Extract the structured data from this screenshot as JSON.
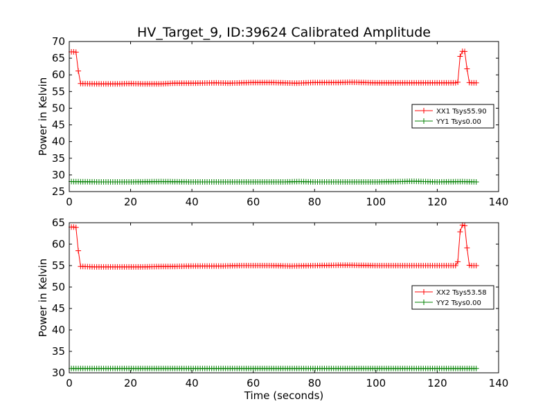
{
  "figure": {
    "title": "HV_Target_9, ID:39624 Calibrated Amplitude",
    "xlabel": "Time (seconds)"
  },
  "colors": {
    "red": "#ff0000",
    "green": "#008000",
    "axes": "#000000"
  },
  "chart_data": [
    {
      "type": "line",
      "ylabel": "Power in Kelvin",
      "xlim": [
        0,
        140
      ],
      "ylim": [
        25,
        70
      ],
      "xticks": [
        0,
        20,
        40,
        60,
        80,
        100,
        120,
        140
      ],
      "yticks": [
        25,
        30,
        35,
        40,
        45,
        50,
        55,
        60,
        65,
        70
      ],
      "grid": false,
      "legend_position": "right",
      "series": [
        {
          "name": "XX1 Tsys55.90",
          "color": "#ff0000",
          "marker": "+",
          "points": [
            [
              0.7,
              66.9
            ],
            [
              1.5,
              66.9
            ],
            [
              2.3,
              66.8
            ],
            [
              2.9,
              61.5
            ],
            [
              3.5,
              57.4
            ],
            [
              4,
              57.4
            ],
            [
              8,
              57.3
            ],
            [
              16,
              57.3
            ],
            [
              20,
              57.4
            ],
            [
              24,
              57.3
            ],
            [
              30,
              57.3
            ],
            [
              34,
              57.5
            ],
            [
              40,
              57.5
            ],
            [
              48,
              57.6
            ],
            [
              52,
              57.5
            ],
            [
              56,
              57.6
            ],
            [
              60,
              57.7
            ],
            [
              66,
              57.7
            ],
            [
              70,
              57.6
            ],
            [
              74,
              57.5
            ],
            [
              80,
              57.7
            ],
            [
              88,
              57.7
            ],
            [
              92,
              57.8
            ],
            [
              96,
              57.7
            ],
            [
              100,
              57.6
            ],
            [
              110,
              57.6
            ],
            [
              120,
              57.6
            ],
            [
              126,
              57.6
            ],
            [
              126.7,
              57.8
            ],
            [
              127.2,
              64.5
            ],
            [
              127.8,
              67.0
            ],
            [
              128.5,
              67.1
            ],
            [
              129.0,
              67.0
            ],
            [
              129.6,
              62.5
            ],
            [
              130.3,
              57.7
            ],
            [
              131,
              57.6
            ],
            [
              133,
              57.6
            ]
          ]
        },
        {
          "name": "YY1 Tsys0.00",
          "color": "#008000",
          "marker": "+",
          "points": [
            [
              0.7,
              28.0
            ],
            [
              10,
              27.9
            ],
            [
              20,
              27.9
            ],
            [
              30,
              28.0
            ],
            [
              40,
              27.9
            ],
            [
              50,
              27.9
            ],
            [
              60,
              27.9
            ],
            [
              70,
              27.9
            ],
            [
              75,
              28.0
            ],
            [
              80,
              27.9
            ],
            [
              90,
              27.9
            ],
            [
              100,
              27.9
            ],
            [
              108,
              28.0
            ],
            [
              112,
              28.1
            ],
            [
              116,
              28.0
            ],
            [
              120,
              27.9
            ],
            [
              128,
              28.0
            ],
            [
              133,
              27.9
            ]
          ]
        }
      ]
    },
    {
      "type": "line",
      "ylabel": "Power in Kelvin",
      "xlim": [
        0,
        140
      ],
      "ylim": [
        30,
        65
      ],
      "xticks": [
        0,
        20,
        40,
        60,
        80,
        100,
        120,
        140
      ],
      "yticks": [
        30,
        35,
        40,
        45,
        50,
        55,
        60,
        65
      ],
      "grid": false,
      "legend_position": "right",
      "series": [
        {
          "name": "XX2 Tsys53.58",
          "color": "#ff0000",
          "marker": "+",
          "points": [
            [
              0.7,
              64.0
            ],
            [
              1.5,
              64.0
            ],
            [
              2.3,
              63.9
            ],
            [
              2.9,
              58.8
            ],
            [
              3.5,
              54.8
            ],
            [
              4,
              54.8
            ],
            [
              8,
              54.7
            ],
            [
              16,
              54.7
            ],
            [
              24,
              54.7
            ],
            [
              30,
              54.8
            ],
            [
              34,
              54.8
            ],
            [
              40,
              54.9
            ],
            [
              46,
              54.9
            ],
            [
              50,
              54.9
            ],
            [
              56,
              55.0
            ],
            [
              60,
              55.0
            ],
            [
              66,
              55.0
            ],
            [
              72,
              54.9
            ],
            [
              80,
              55.0
            ],
            [
              88,
              55.1
            ],
            [
              92,
              55.1
            ],
            [
              100,
              55.0
            ],
            [
              110,
              55.0
            ],
            [
              120,
              55.0
            ],
            [
              126,
              55.0
            ],
            [
              126.7,
              55.9
            ],
            [
              127.2,
              61.8
            ],
            [
              127.8,
              64.4
            ],
            [
              128.5,
              64.5
            ],
            [
              129.0,
              64.3
            ],
            [
              129.6,
              59.8
            ],
            [
              130.3,
              55.1
            ],
            [
              131,
              55.0
            ],
            [
              133,
              55.0
            ]
          ]
        },
        {
          "name": "YY2 Tsys0.00",
          "color": "#008000",
          "marker": "+",
          "points": [
            [
              0.7,
              31.0
            ],
            [
              10,
              31.0
            ],
            [
              20,
              31.0
            ],
            [
              30,
              31.0
            ],
            [
              40,
              31.0
            ],
            [
              50,
              31.0
            ],
            [
              60,
              31.0
            ],
            [
              70,
              31.0
            ],
            [
              80,
              31.0
            ],
            [
              90,
              31.0
            ],
            [
              100,
              31.0
            ],
            [
              110,
              31.0
            ],
            [
              120,
              31.0
            ],
            [
              133,
              31.0
            ]
          ]
        }
      ]
    }
  ]
}
